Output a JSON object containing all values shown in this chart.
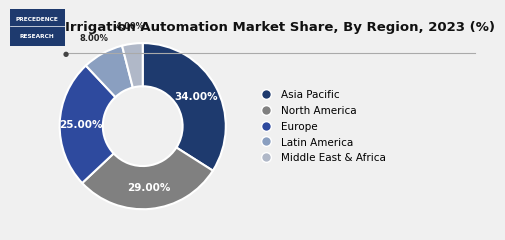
{
  "title": "Irrigation Automation Market Share, By Region, 2023 (%)",
  "labels": [
    "Asia Pacific",
    "North America",
    "Europe",
    "Latin America",
    "Middle East & Africa"
  ],
  "values": [
    34.0,
    29.0,
    25.0,
    8.0,
    4.0
  ],
  "colors": [
    "#1e3a6e",
    "#808080",
    "#2e4a9e",
    "#8a9fc0",
    "#b0b8c8"
  ],
  "pct_labels": [
    "34.00%",
    "29.00%",
    "25.00%",
    "8.00%",
    "4.00%"
  ],
  "bg_color": "#f0f0f0",
  "title_fontsize": 9.5,
  "label_fontsize": 7.5,
  "legend_fontsize": 7.5,
  "wedge_linewidth": 1.5,
  "wedge_edgecolor": "#ffffff",
  "logo_bg": "#1e3a6e",
  "line_color": "#888888"
}
